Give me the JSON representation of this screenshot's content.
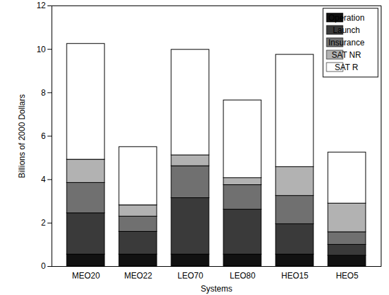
{
  "chart_data": {
    "type": "bar",
    "stacked": true,
    "xlabel": "Systems",
    "ylabel": "Billions of 2000 Dollars",
    "categories": [
      "MEO20",
      "MEO22",
      "LEO70",
      "LEO80",
      "HEO15",
      "HEO5"
    ],
    "series": [
      {
        "name": "Operation",
        "color": "#111111",
        "values": [
          0.55,
          0.55,
          0.55,
          0.55,
          0.55,
          0.5
        ]
      },
      {
        "name": "Launch",
        "color": "#3a3a3a",
        "values": [
          1.9,
          1.05,
          2.6,
          2.07,
          1.4,
          0.5
        ]
      },
      {
        "name": "Insurance",
        "color": "#707070",
        "values": [
          1.4,
          0.7,
          1.47,
          1.13,
          1.3,
          0.58
        ]
      },
      {
        "name": "SAT NR",
        "color": "#b2b2b2",
        "values": [
          1.07,
          0.52,
          0.5,
          0.32,
          1.33,
          1.32
        ]
      },
      {
        "name": "SAT R",
        "color": "#ffffff",
        "values": [
          5.33,
          2.68,
          4.86,
          3.58,
          5.17,
          2.35
        ]
      }
    ],
    "ylim": [
      0,
      12
    ],
    "yticks": [
      0,
      2,
      4,
      6,
      8,
      10,
      12
    ],
    "grid": false,
    "legend": "top-right"
  }
}
